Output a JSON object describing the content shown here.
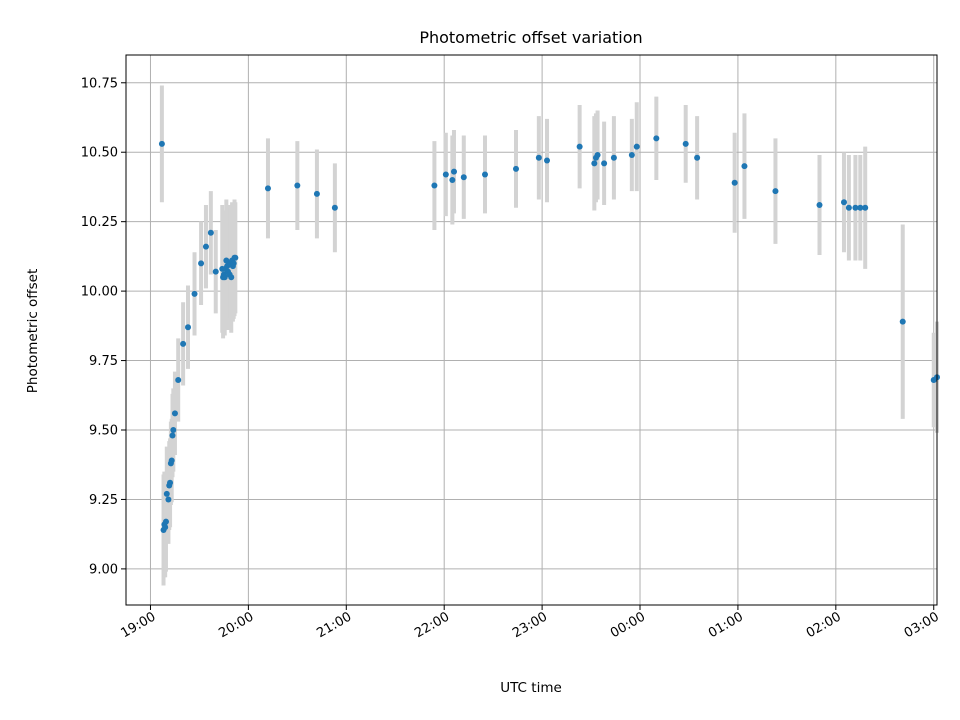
{
  "chart_data": {
    "type": "scatter",
    "title": "Photometric offset variation",
    "xlabel": "UTC time",
    "ylabel": "Photometric offset",
    "x_unit": "minutes from 19:00 UTC",
    "xlim": [
      -15,
      482
    ],
    "ylim": [
      8.87,
      10.85
    ],
    "grid": true,
    "colors": {
      "point": "#1f77b4",
      "errorbar": "#d3d3d3",
      "grid": "#b0b0b0"
    },
    "x_ticks": [
      {
        "value": 0,
        "label": "19:00"
      },
      {
        "value": 60,
        "label": "20:00"
      },
      {
        "value": 120,
        "label": "21:00"
      },
      {
        "value": 180,
        "label": "22:00"
      },
      {
        "value": 240,
        "label": "23:00"
      },
      {
        "value": 300,
        "label": "00:00"
      },
      {
        "value": 360,
        "label": "01:00"
      },
      {
        "value": 420,
        "label": "02:00"
      },
      {
        "value": 480,
        "label": "03:00"
      }
    ],
    "y_ticks": [
      {
        "value": 9.0,
        "label": "9.00"
      },
      {
        "value": 9.25,
        "label": "9.25"
      },
      {
        "value": 9.5,
        "label": "9.50"
      },
      {
        "value": 9.75,
        "label": "9.75"
      },
      {
        "value": 10.0,
        "label": "10.00"
      },
      {
        "value": 10.25,
        "label": "10.25"
      },
      {
        "value": 10.5,
        "label": "10.50"
      },
      {
        "value": 10.75,
        "label": "10.75"
      }
    ],
    "series": [
      {
        "x": [
          7,
          8,
          8.5,
          9,
          9.5,
          10,
          11,
          11.5,
          12,
          12.5,
          13,
          13.5,
          14,
          15,
          17,
          20,
          23,
          27,
          31,
          34,
          37,
          40,
          44,
          44.5,
          45,
          45.5,
          46,
          46.5,
          47,
          47.5,
          48,
          48.5,
          49,
          49.5,
          50,
          50.5,
          51,
          51.5,
          52,
          72,
          90,
          102,
          113,
          174,
          181,
          185,
          186,
          192,
          205,
          224,
          238,
          243,
          263,
          272,
          273,
          274,
          278,
          284,
          295,
          298,
          310,
          328,
          335,
          358,
          364,
          383,
          410,
          425,
          428,
          432,
          435,
          438,
          461,
          480,
          482
        ],
        "y": [
          10.53,
          9.14,
          9.16,
          9.15,
          9.17,
          9.27,
          9.25,
          9.3,
          9.31,
          9.38,
          9.39,
          9.48,
          9.5,
          9.56,
          9.68,
          9.81,
          9.87,
          9.99,
          10.1,
          10.16,
          10.21,
          10.07,
          10.08,
          10.05,
          10.06,
          10.05,
          10.08,
          10.11,
          10.09,
          10.07,
          10.1,
          10.06,
          10.1,
          10.05,
          10.11,
          10.09,
          10.1,
          10.12,
          10.12,
          10.37,
          10.38,
          10.35,
          10.3,
          10.38,
          10.42,
          10.4,
          10.43,
          10.41,
          10.42,
          10.44,
          10.48,
          10.47,
          10.52,
          10.46,
          10.48,
          10.49,
          10.46,
          10.48,
          10.49,
          10.52,
          10.55,
          10.53,
          10.48,
          10.39,
          10.45,
          10.36,
          10.31,
          10.32,
          10.3,
          10.3,
          10.3,
          10.3,
          9.89,
          9.68,
          9.69
        ],
        "err": [
          0.21,
          0.2,
          0.19,
          0.18,
          0.18,
          0.17,
          0.16,
          0.16,
          0.16,
          0.15,
          0.15,
          0.15,
          0.15,
          0.15,
          0.15,
          0.15,
          0.15,
          0.15,
          0.15,
          0.15,
          0.15,
          0.15,
          0.23,
          0.22,
          0.22,
          0.21,
          0.21,
          0.22,
          0.22,
          0.21,
          0.21,
          0.2,
          0.2,
          0.2,
          0.21,
          0.2,
          0.2,
          0.21,
          0.2,
          0.18,
          0.16,
          0.16,
          0.16,
          0.16,
          0.15,
          0.16,
          0.15,
          0.15,
          0.14,
          0.14,
          0.15,
          0.15,
          0.15,
          0.17,
          0.16,
          0.16,
          0.15,
          0.15,
          0.13,
          0.16,
          0.15,
          0.14,
          0.15,
          0.18,
          0.19,
          0.19,
          0.18,
          0.18,
          0.19,
          0.19,
          0.19,
          0.22,
          0.35,
          0.17,
          0.2
        ]
      }
    ]
  }
}
